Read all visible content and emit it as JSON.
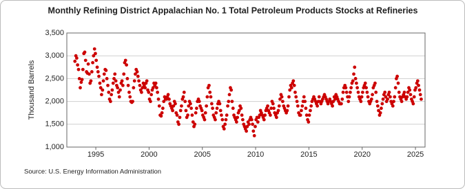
{
  "chart_data": {
    "type": "scatter",
    "title": "Monthly Refining District Appalachian No. 1 Total Petroleum Products Stocks at Refineries",
    "y_label": "Thousand Barrels",
    "source": "Source: U.S. Energy Information Administration",
    "color": "#cc0000",
    "grid": true,
    "xlim": [
      1992.28,
      2025.9
    ],
    "ylim": [
      1000,
      3500
    ],
    "xticks": [
      1995,
      2000,
      2005,
      2010,
      2015,
      2020,
      2025
    ],
    "yticks": [
      {
        "value": 1000,
        "label": "1,000"
      },
      {
        "value": 1500,
        "label": "1,500"
      },
      {
        "value": 2000,
        "label": "2,000"
      },
      {
        "value": 2500,
        "label": "2,500"
      },
      {
        "value": 3000,
        "label": "3,000"
      },
      {
        "value": 3500,
        "label": "3,500"
      }
    ],
    "x": [
      1993.04,
      1993.13,
      1993.21,
      1993.29,
      1993.38,
      1993.46,
      1993.54,
      1993.63,
      1993.71,
      1993.79,
      1993.88,
      1993.96,
      1994.04,
      1994.13,
      1994.21,
      1994.29,
      1994.38,
      1994.46,
      1994.54,
      1994.63,
      1994.71,
      1994.79,
      1994.88,
      1994.96,
      1995.04,
      1995.13,
      1995.21,
      1995.29,
      1995.38,
      1995.46,
      1995.54,
      1995.63,
      1995.71,
      1995.79,
      1995.88,
      1995.96,
      1996.04,
      1996.13,
      1996.21,
      1996.29,
      1996.38,
      1996.46,
      1996.54,
      1996.63,
      1996.71,
      1996.79,
      1996.88,
      1996.96,
      1997.04,
      1997.13,
      1997.21,
      1997.29,
      1997.38,
      1997.46,
      1997.54,
      1997.63,
      1997.71,
      1997.79,
      1997.88,
      1997.96,
      1998.04,
      1998.13,
      1998.21,
      1998.29,
      1998.38,
      1998.46,
      1998.54,
      1998.63,
      1998.71,
      1998.79,
      1998.88,
      1998.96,
      1999.04,
      1999.13,
      1999.21,
      1999.29,
      1999.38,
      1999.46,
      1999.54,
      1999.63,
      1999.71,
      1999.79,
      1999.88,
      1999.96,
      2000.04,
      2000.13,
      2000.21,
      2000.29,
      2000.38,
      2000.46,
      2000.54,
      2000.63,
      2000.71,
      2000.79,
      2000.88,
      2000.96,
      2001.04,
      2001.13,
      2001.21,
      2001.29,
      2001.38,
      2001.46,
      2001.54,
      2001.63,
      2001.71,
      2001.79,
      2001.88,
      2001.96,
      2002.04,
      2002.13,
      2002.21,
      2002.29,
      2002.38,
      2002.46,
      2002.54,
      2002.63,
      2002.71,
      2002.79,
      2002.88,
      2002.96,
      2003.04,
      2003.13,
      2003.21,
      2003.29,
      2003.38,
      2003.46,
      2003.54,
      2003.63,
      2003.71,
      2003.79,
      2003.88,
      2003.96,
      2004.04,
      2004.13,
      2004.21,
      2004.29,
      2004.38,
      2004.46,
      2004.54,
      2004.63,
      2004.71,
      2004.79,
      2004.88,
      2004.96,
      2005.04,
      2005.13,
      2005.21,
      2005.29,
      2005.38,
      2005.46,
      2005.54,
      2005.63,
      2005.71,
      2005.79,
      2005.88,
      2005.96,
      2006.04,
      2006.13,
      2006.21,
      2006.29,
      2006.38,
      2006.46,
      2006.54,
      2006.63,
      2006.71,
      2006.79,
      2006.88,
      2006.96,
      2007.04,
      2007.13,
      2007.21,
      2007.29,
      2007.38,
      2007.46,
      2007.54,
      2007.63,
      2007.71,
      2007.79,
      2007.88,
      2007.96,
      2008.04,
      2008.13,
      2008.21,
      2008.29,
      2008.38,
      2008.46,
      2008.54,
      2008.63,
      2008.71,
      2008.79,
      2008.88,
      2008.96,
      2009.04,
      2009.13,
      2009.21,
      2009.29,
      2009.38,
      2009.46,
      2009.54,
      2009.63,
      2009.71,
      2009.79,
      2009.88,
      2009.96,
      2010.04,
      2010.13,
      2010.21,
      2010.29,
      2010.38,
      2010.46,
      2010.54,
      2010.63,
      2010.71,
      2010.79,
      2010.88,
      2010.96,
      2011.04,
      2011.13,
      2011.21,
      2011.29,
      2011.38,
      2011.46,
      2011.54,
      2011.63,
      2011.71,
      2011.79,
      2011.88,
      2011.96,
      2012.04,
      2012.13,
      2012.21,
      2012.29,
      2012.38,
      2012.46,
      2012.54,
      2012.63,
      2012.71,
      2012.79,
      2012.88,
      2012.96,
      2013.04,
      2013.13,
      2013.21,
      2013.29,
      2013.38,
      2013.46,
      2013.54,
      2013.63,
      2013.71,
      2013.79,
      2013.88,
      2013.96,
      2014.04,
      2014.13,
      2014.21,
      2014.29,
      2014.38,
      2014.46,
      2014.54,
      2014.63,
      2014.71,
      2014.79,
      2014.88,
      2014.96,
      2015.04,
      2015.13,
      2015.21,
      2015.29,
      2015.38,
      2015.46,
      2015.54,
      2015.63,
      2015.71,
      2015.79,
      2015.88,
      2015.96,
      2016.04,
      2016.13,
      2016.21,
      2016.29,
      2016.38,
      2016.46,
      2016.54,
      2016.63,
      2016.71,
      2016.79,
      2016.88,
      2016.96,
      2017.04,
      2017.13,
      2017.21,
      2017.29,
      2017.38,
      2017.46,
      2017.54,
      2017.63,
      2017.71,
      2017.79,
      2017.88,
      2017.96,
      2018.04,
      2018.13,
      2018.21,
      2018.29,
      2018.38,
      2018.46,
      2018.54,
      2018.63,
      2018.71,
      2018.79,
      2018.88,
      2018.96,
      2019.04,
      2019.13,
      2019.21,
      2019.29,
      2019.38,
      2019.46,
      2019.54,
      2019.63,
      2019.71,
      2019.79,
      2019.88,
      2019.96,
      2020.04,
      2020.13,
      2020.21,
      2020.29,
      2020.38,
      2020.46,
      2020.54,
      2020.63,
      2020.71,
      2020.79,
      2020.88,
      2020.96,
      2021.04,
      2021.13,
      2021.21,
      2021.29,
      2021.38,
      2021.46,
      2021.54,
      2021.63,
      2021.71,
      2021.79,
      2021.88,
      2021.96,
      2022.04,
      2022.13,
      2022.21,
      2022.29,
      2022.38,
      2022.46,
      2022.54,
      2022.63,
      2022.71,
      2022.79,
      2022.88,
      2022.96,
      2023.04,
      2023.13,
      2023.21,
      2023.29,
      2023.38,
      2023.46,
      2023.54,
      2023.63,
      2023.71,
      2023.79,
      2023.88,
      2023.96,
      2024.04,
      2024.13,
      2024.21,
      2024.29,
      2024.38,
      2024.46,
      2024.54,
      2024.63,
      2024.71,
      2024.79,
      2024.88,
      2024.96,
      2025.04,
      2025.13,
      2025.21,
      2025.29,
      2025.38,
      2025.46,
      2025.54
    ],
    "values": [
      2880,
      3000,
      2950,
      2800,
      2700,
      2500,
      2300,
      2420,
      2480,
      2700,
      3050,
      3080,
      2900,
      2650,
      2620,
      2820,
      2600,
      2400,
      2450,
      2650,
      2850,
      3000,
      3150,
      3050,
      2900,
      2750,
      2650,
      2550,
      2400,
      2300,
      2150,
      2250,
      2450,
      2600,
      2700,
      2680,
      2500,
      2350,
      2200,
      2050,
      2000,
      2150,
      2250,
      2400,
      2500,
      2600,
      2450,
      2350,
      2300,
      2200,
      2100,
      2250,
      2400,
      2450,
      2350,
      2600,
      2850,
      2900,
      2800,
      2500,
      2350,
      2200,
      2100,
      2000,
      1980,
      2000,
      2300,
      2450,
      2600,
      2700,
      2650,
      2550,
      2450,
      2350,
      2250,
      2200,
      2300,
      2400,
      2350,
      2300,
      2400,
      2450,
      2250,
      2200,
      2050,
      2000,
      2150,
      2250,
      2300,
      2400,
      2350,
      2400,
      2300,
      2200,
      2050,
      1900,
      1700,
      1680,
      1750,
      1850,
      2000,
      2100,
      2050,
      2050,
      2100,
      2150,
      2050,
      1950,
      1900,
      1850,
      1800,
      1900,
      2000,
      1950,
      1750,
      1700,
      1550,
      1500,
      1650,
      1800,
      1900,
      2050,
      2100,
      2200,
      2000,
      1800,
      1650,
      1700,
      1900,
      2000,
      1950,
      1850,
      1700,
      1550,
      1450,
      1500,
      1750,
      1850,
      2000,
      2050,
      2000,
      1900,
      1850,
      1800,
      1700,
      1650,
      1600,
      1750,
      1900,
      2100,
      2300,
      2350,
      2200,
      2100,
      1950,
      1850,
      1700,
      1650,
      1600,
      1750,
      1850,
      1950,
      2000,
      1950,
      1800,
      1700,
      1600,
      1450,
      1400,
      1500,
      1600,
      1700,
      1900,
      2000,
      2150,
      2300,
      2250,
      2000,
      1850,
      1700,
      1650,
      1600,
      1550,
      1650,
      1750,
      1800,
      1900,
      1850,
      1700,
      1600,
      1500,
      1450,
      1400,
      1350,
      1450,
      1550,
      1500,
      1600,
      1650,
      1600,
      1500,
      1350,
      1250,
      1450,
      1600,
      1650,
      1550,
      1650,
      1700,
      1800,
      1750,
      1700,
      1650,
      1600,
      1700,
      1800,
      1850,
      1900,
      1800,
      1750,
      1700,
      1850,
      2000,
      1950,
      1850,
      1750,
      1700,
      1650,
      1750,
      1800,
      1900,
      2050,
      2150,
      2100,
      2000,
      1900,
      1850,
      1800,
      1750,
      1800,
      1900,
      2100,
      2250,
      2350,
      2300,
      2400,
      2450,
      2350,
      2200,
      2100,
      2000,
      1900,
      1750,
      1700,
      1700,
      1800,
      1900,
      2000,
      2100,
      2000,
      1850,
      1700,
      1600,
      1550,
      1700,
      1800,
      1900,
      2000,
      2050,
      2100,
      2050,
      2000,
      1950,
      1900,
      2000,
      2100,
      2000,
      1950,
      2000,
      2050,
      2100,
      2150,
      2100,
      2050,
      2000,
      1950,
      2000,
      2050,
      2000,
      1950,
      1900,
      2000,
      2100,
      2050,
      2150,
      2100,
      2050,
      2000,
      1950,
      1950,
      1950,
      2050,
      2200,
      2300,
      2350,
      2300,
      2200,
      2100,
      2000,
      2100,
      2200,
      2300,
      2400,
      2450,
      2600,
      2750,
      2500,
      2400,
      2300,
      2200,
      2100,
      2050,
      2000,
      2100,
      2200,
      2300,
      2350,
      2400,
      2300,
      2200,
      2100,
      2000,
      1950,
      2000,
      2050,
      2150,
      2300,
      2350,
      2400,
      2200,
      2000,
      1900,
      1800,
      1700,
      1750,
      1850,
      1950,
      2050,
      2150,
      2200,
      2100,
      2000,
      2050,
      2150,
      2200,
      2100,
      2000,
      1950,
      1900,
      2000,
      2100,
      2300,
      2500,
      2550,
      2400,
      2200,
      2100,
      2050,
      2000,
      2100,
      2150,
      2200,
      2100,
      2050,
      2100,
      2200,
      2300,
      2250,
      2150,
      2050,
      2000,
      1950,
      2100,
      2250,
      2300,
      2400,
      2450,
      2350,
      2250,
      2150,
      2050
    ]
  }
}
